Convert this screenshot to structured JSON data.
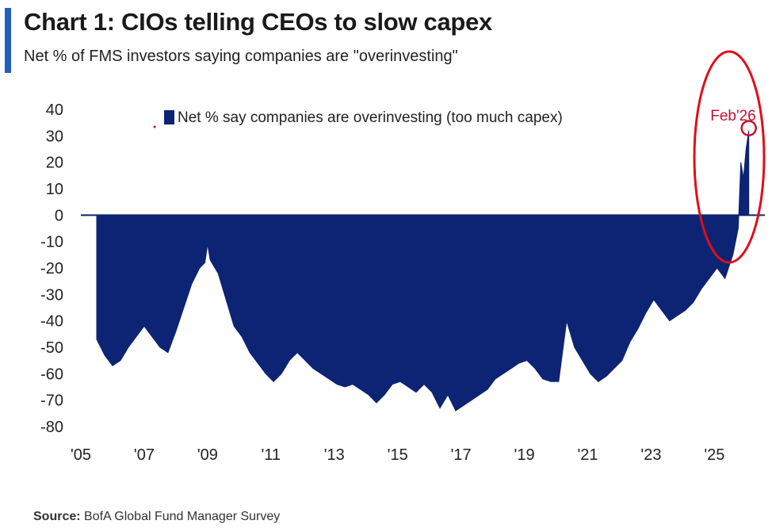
{
  "header": {
    "title": "Chart 1: CIOs telling CEOs to slow capex",
    "subtitle": "Net % of FMS investors saying companies are \"overinvesting\""
  },
  "source": {
    "label": "Source:",
    "text": "BofA Global Fund Manager Survey"
  },
  "annotation": {
    "label": "Feb'26",
    "color": "#c8102e"
  },
  "colors": {
    "series": "#0d2474",
    "annotation": "#c8102e",
    "highlight_ellipse": "#e10d1b"
  },
  "chart_data": {
    "type": "area",
    "legend": {
      "label": "Net % say companies are overinvesting (too much capex)",
      "placement": "top-center"
    },
    "series": [
      {
        "name": "Net % say companies are overinvesting (too much capex)",
        "points": [
          [
            "2005-07",
            -47
          ],
          [
            "2005-10",
            -53
          ],
          [
            "2006-01",
            -57
          ],
          [
            "2006-04",
            -55
          ],
          [
            "2006-07",
            -50
          ],
          [
            "2006-10",
            -46
          ],
          [
            "2007-01",
            -42
          ],
          [
            "2007-04",
            -46
          ],
          [
            "2007-07",
            -50
          ],
          [
            "2007-10",
            -52
          ],
          [
            "2008-01",
            -44
          ],
          [
            "2008-04",
            -35
          ],
          [
            "2008-07",
            -26
          ],
          [
            "2008-10",
            -20
          ],
          [
            "2008-12",
            -18
          ],
          [
            "2009-01",
            -11
          ],
          [
            "2009-02",
            -17
          ],
          [
            "2009-05",
            -22
          ],
          [
            "2009-08",
            -32
          ],
          [
            "2009-11",
            -42
          ],
          [
            "2010-02",
            -46
          ],
          [
            "2010-05",
            -52
          ],
          [
            "2010-08",
            -56
          ],
          [
            "2010-11",
            -60
          ],
          [
            "2011-02",
            -63
          ],
          [
            "2011-05",
            -60
          ],
          [
            "2011-08",
            -55
          ],
          [
            "2011-11",
            -52
          ],
          [
            "2012-02",
            -55
          ],
          [
            "2012-05",
            -58
          ],
          [
            "2012-08",
            -60
          ],
          [
            "2012-11",
            -62
          ],
          [
            "2013-02",
            -64
          ],
          [
            "2013-05",
            -65
          ],
          [
            "2013-08",
            -64
          ],
          [
            "2013-11",
            -66
          ],
          [
            "2014-02",
            -68
          ],
          [
            "2014-05",
            -71
          ],
          [
            "2014-08",
            -68
          ],
          [
            "2014-11",
            -64
          ],
          [
            "2015-02",
            -63
          ],
          [
            "2015-05",
            -65
          ],
          [
            "2015-08",
            -67
          ],
          [
            "2015-11",
            -64
          ],
          [
            "2016-02",
            -67
          ],
          [
            "2016-05",
            -73
          ],
          [
            "2016-08",
            -68
          ],
          [
            "2016-11",
            -74
          ],
          [
            "2017-02",
            -72
          ],
          [
            "2017-05",
            -70
          ],
          [
            "2017-08",
            -68
          ],
          [
            "2017-11",
            -66
          ],
          [
            "2018-02",
            -62
          ],
          [
            "2018-05",
            -60
          ],
          [
            "2018-08",
            -58
          ],
          [
            "2018-11",
            -56
          ],
          [
            "2019-02",
            -55
          ],
          [
            "2019-05",
            -58
          ],
          [
            "2019-08",
            -62
          ],
          [
            "2019-11",
            -63
          ],
          [
            "2020-02",
            -63
          ],
          [
            "2020-05",
            -40
          ],
          [
            "2020-08",
            -50
          ],
          [
            "2020-11",
            -55
          ],
          [
            "2021-02",
            -60
          ],
          [
            "2021-05",
            -63
          ],
          [
            "2021-08",
            -61
          ],
          [
            "2021-11",
            -58
          ],
          [
            "2022-02",
            -55
          ],
          [
            "2022-05",
            -48
          ],
          [
            "2022-08",
            -43
          ],
          [
            "2022-11",
            -37
          ],
          [
            "2023-02",
            -32
          ],
          [
            "2023-05",
            -36
          ],
          [
            "2023-08",
            -40
          ],
          [
            "2023-11",
            -38
          ],
          [
            "2024-02",
            -36
          ],
          [
            "2024-05",
            -33
          ],
          [
            "2024-08",
            -28
          ],
          [
            "2024-11",
            -24
          ],
          [
            "2025-02",
            -20
          ],
          [
            "2025-05",
            -24
          ],
          [
            "2025-08",
            -15
          ],
          [
            "2025-10",
            -5
          ],
          [
            "2025-11",
            20
          ],
          [
            "2025-12",
            14
          ],
          [
            "2026-01",
            25
          ],
          [
            "2026-02",
            32
          ]
        ]
      }
    ],
    "x_ticks": [
      "'05",
      "'07",
      "'09",
      "'11",
      "'13",
      "'15",
      "'17",
      "'19",
      "'21",
      "'23",
      "'25"
    ],
    "y_ticks": [
      40,
      30,
      20,
      10,
      0,
      -10,
      -20,
      -30,
      -40,
      -50,
      -60,
      -70,
      -80
    ],
    "ylim": [
      -80,
      40
    ],
    "xlim": [
      "2005-01",
      "2026-06"
    ],
    "grid": false
  }
}
